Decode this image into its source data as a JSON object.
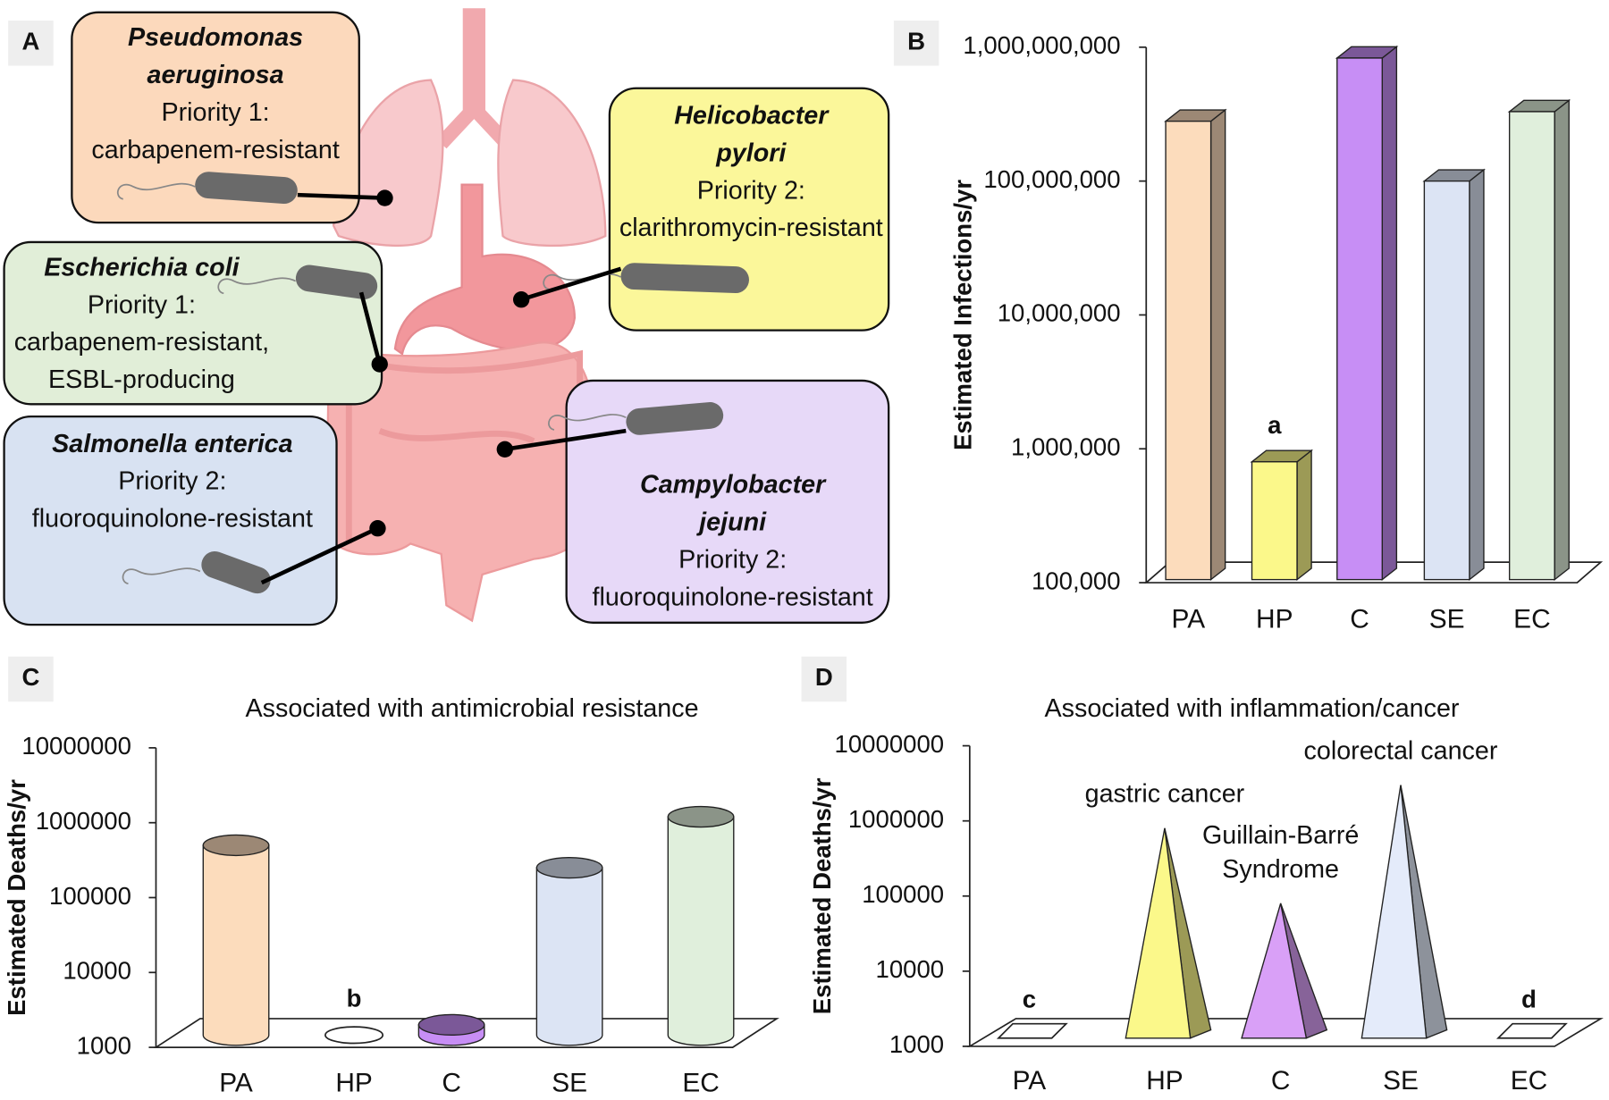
{
  "diagram": {
    "panel": "A",
    "nodes": [
      {
        "name": [
          "Pseudomonas",
          "aeruginosa"
        ],
        "text": [
          "Priority 1:",
          "carbapenem-resistant"
        ],
        "color": "#fcd9bc"
      },
      {
        "name": [
          "Escherichia coli"
        ],
        "text": [
          "Priority 1:",
          "carbapenem-resistant,",
          "ESBL-producing"
        ],
        "color": "#e1eed8"
      },
      {
        "name": [
          "Salmonella enterica"
        ],
        "text": [
          "Priority 2:",
          "fluoroquinolone-resistant"
        ],
        "color": "#d8e2f2"
      },
      {
        "name": [
          "Helicobacter",
          "pylori"
        ],
        "text": [
          "Priority 2:",
          "clarithromycin-resistant"
        ],
        "color": "#fbf79a"
      },
      {
        "name": [
          "Campylobacter",
          "jejuni"
        ],
        "text": [
          "Priority 2:",
          "fluoroquinolone-resistant"
        ],
        "color": "#e7d9f8"
      }
    ]
  },
  "chart_data": [
    {
      "type": "bar",
      "shape": "box",
      "panel": "B",
      "log": true,
      "y_label": "Estimated Infections/yr",
      "categories": [
        "PA",
        "HP",
        "C",
        "SE",
        "EC"
      ],
      "values": [
        280000000,
        800000,
        830000000,
        100000000,
        330000000
      ],
      "colors": [
        "#fcdcbc",
        "#fbf88a",
        "#c78ef5",
        "#dce4f4",
        "#e0efdc"
      ],
      "annotations": [
        null,
        "a",
        null,
        null,
        null
      ],
      "ylim": [
        100000,
        1000000000
      ],
      "yticks": [
        {
          "value": 100000,
          "label": "100,000"
        },
        {
          "value": 1000000,
          "label": "1,000,000"
        },
        {
          "value": 10000000,
          "label": "10,000,000"
        },
        {
          "value": 100000000,
          "label": "100,000,000"
        },
        {
          "value": 1000000000,
          "label": "1,000,000,000"
        }
      ]
    },
    {
      "type": "bar",
      "shape": "cylinder",
      "panel": "C",
      "log": true,
      "title": "Associated with antimicrobial resistance",
      "y_label": "Estimated Deaths/yr",
      "categories": [
        "PA",
        "HP",
        "C",
        "SE",
        "EC"
      ],
      "values": [
        500000,
        null,
        2000,
        250000,
        1200000
      ],
      "colors": [
        "#fcdcbc",
        "#fbf88a",
        "#c78ef5",
        "#dce4f4",
        "#e0efdc"
      ],
      "annotations": [
        null,
        "b",
        null,
        null,
        null
      ],
      "ylim": [
        1000,
        10000000
      ],
      "yticks": [
        1000,
        10000,
        100000,
        1000000,
        10000000
      ]
    },
    {
      "type": "bar",
      "shape": "pyramid",
      "panel": "D",
      "log": true,
      "title": "Associated with inflammation/cancer",
      "y_label": "Estimated Deaths/yr",
      "categories": [
        "PA",
        "HP",
        "C",
        "SE",
        "EC"
      ],
      "values": [
        null,
        800000,
        80000,
        3000000,
        null
      ],
      "colors": [
        "#fcdcbc",
        "#fbf88a",
        "#d9a0f7",
        "#e4ebfa",
        "#e0efdc"
      ],
      "annotations": [
        [
          "c"
        ],
        [
          "gastric cancer"
        ],
        [
          "Guillain-Barré",
          "Syndrome"
        ],
        [
          "colorectal cancer"
        ],
        [
          "d"
        ]
      ],
      "ylim": [
        1000,
        10000000
      ],
      "yticks": [
        1000,
        10000,
        100000,
        1000000,
        10000000
      ]
    }
  ]
}
